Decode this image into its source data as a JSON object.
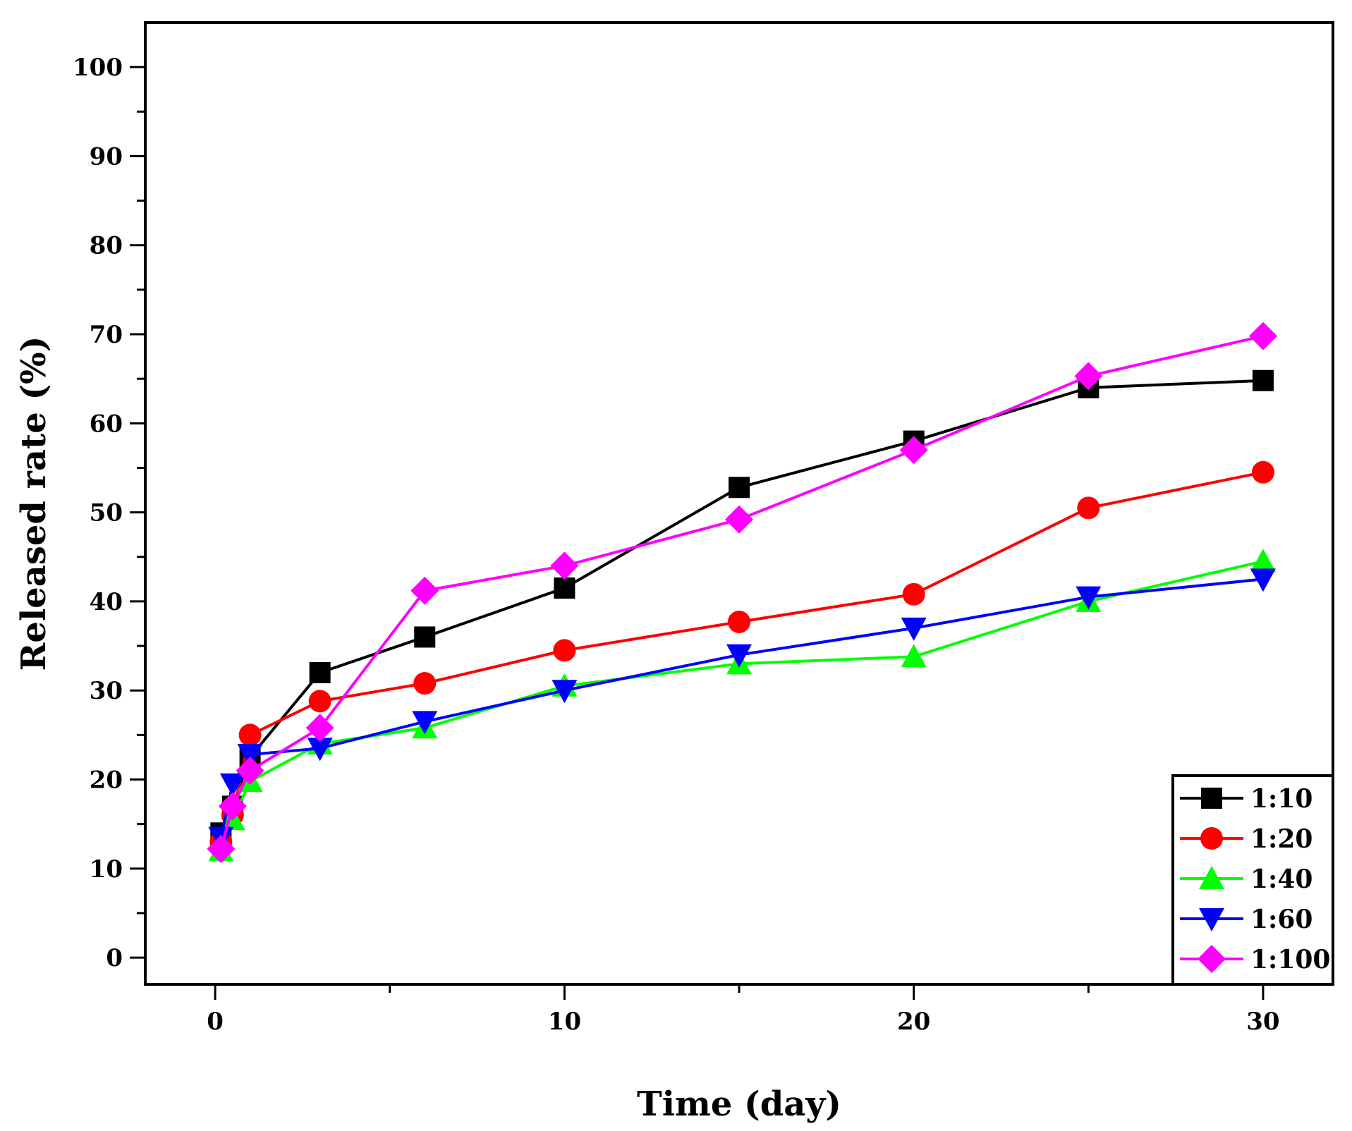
{
  "chart_data": {
    "type": "line",
    "title": "",
    "xlabel": "Time (day)",
    "ylabel": "Released rate (%)",
    "xlim": [
      -2,
      32
    ],
    "ylim": [
      -3,
      105
    ],
    "xticks": [
      0,
      10,
      20,
      30
    ],
    "yticks": [
      0,
      10,
      20,
      30,
      40,
      50,
      60,
      70,
      80,
      90,
      100
    ],
    "x_minor_step": 5,
    "y_minor_step": 5,
    "grid": false,
    "legend_position": "bottom-right",
    "x": [
      0.167,
      0.5,
      1,
      3,
      6,
      10,
      15,
      20,
      25,
      30
    ],
    "series": [
      {
        "name": "1:10",
        "color": "#000000",
        "marker": "square",
        "values": [
          14,
          17,
          22.5,
          32,
          36,
          41.5,
          52.8,
          58,
          64,
          64.8
        ]
      },
      {
        "name": "1:20",
        "color": "#ff0000",
        "marker": "circle",
        "values": [
          13,
          16,
          25,
          28.8,
          30.8,
          34.5,
          37.7,
          40.8,
          50.5,
          54.5
        ]
      },
      {
        "name": "1:40",
        "color": "#00ff00",
        "marker": "triangle-up",
        "values": [
          12,
          15.5,
          19.8,
          24,
          25.8,
          30.5,
          33,
          33.8,
          40,
          44.5
        ]
      },
      {
        "name": "1:60",
        "color": "#0000ff",
        "marker": "triangle-down",
        "values": [
          13.5,
          19.5,
          22.8,
          23.5,
          26.5,
          30,
          34,
          37,
          40.5,
          42.5
        ]
      },
      {
        "name": "1:100",
        "color": "#ff00ff",
        "marker": "diamond",
        "values": [
          12.2,
          17,
          21,
          25.8,
          41.2,
          44,
          49.2,
          57,
          65.3,
          69.8
        ]
      }
    ]
  }
}
